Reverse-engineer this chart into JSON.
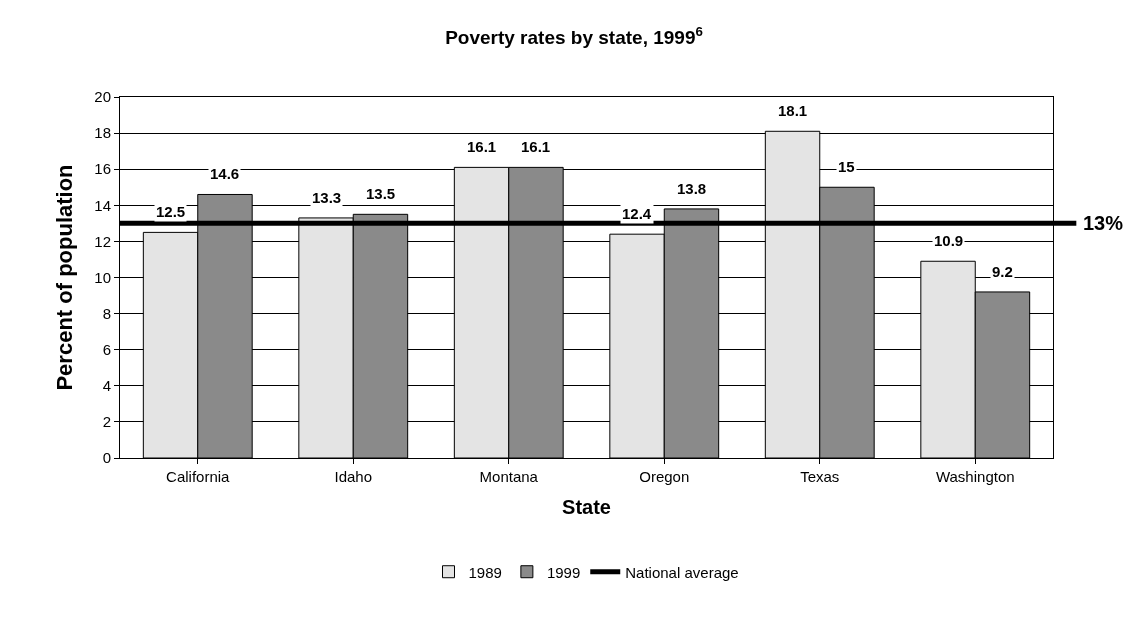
{
  "chart_data": {
    "type": "bar",
    "title": "Poverty rates by state, 1999$^{6}$",
    "xlabel": "State",
    "ylabel": "Percent of population",
    "categories": [
      "California",
      "Idaho",
      "Montana",
      "Oregon",
      "Texas",
      "Washington"
    ],
    "series": [
      {
        "name": "1989",
        "color": "#e4e4e4",
        "values": [
          12.5,
          13.3,
          16.1,
          12.4,
          18.1,
          10.9
        ]
      },
      {
        "name": "1999",
        "color": "#8a8a8a",
        "values": [
          14.6,
          13.5,
          16.1,
          13.8,
          15,
          9.2
        ]
      }
    ],
    "ylim": [
      0,
      20
    ],
    "yticks": [
      0,
      2,
      4,
      6,
      8,
      10,
      12,
      14,
      16,
      18,
      20
    ],
    "grid": "y",
    "data_labels": true,
    "legend": "bottom",
    "ref_lines": [
      {
        "axis": "y",
        "value": 13,
        "label": "National average",
        "color": "#000000"
      }
    ],
    "annotations": [
      "13%"
    ]
  }
}
